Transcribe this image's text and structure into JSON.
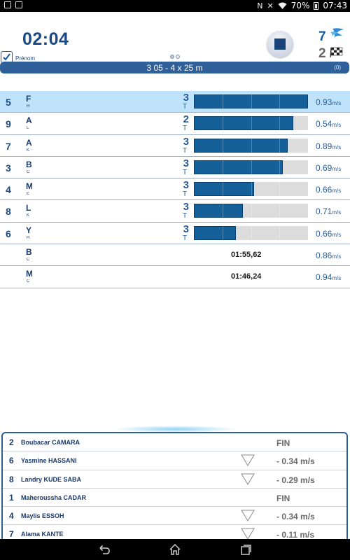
{
  "status_bar": {
    "battery": "70%",
    "time": "07:43",
    "icons": [
      "image-icon",
      "calendar-check-icon",
      "nfc-icon",
      "vibrate-icon",
      "wifi-icon",
      "battery-icon"
    ]
  },
  "header": {
    "timer": "02:04",
    "swimmers_in_water": "7",
    "swimmers_finished": "2",
    "prenom_label": "Prénom",
    "race_title": "3 05 - 4 x 25 m",
    "race_count": "(0)"
  },
  "rows": [
    {
      "lane": "5",
      "name": "F",
      "club": "H",
      "laps": "3",
      "t": "T",
      "progress": 1.0,
      "time": "",
      "speed": "0.93",
      "unit": "m/s",
      "highlight": true
    },
    {
      "lane": "9",
      "name": "A",
      "club": "L",
      "laps": "2",
      "t": "T",
      "progress": 0.87,
      "time": "",
      "speed": "0.54",
      "unit": "m/s",
      "highlight": false
    },
    {
      "lane": "7",
      "name": "A",
      "club": "K",
      "laps": "3",
      "t": "T",
      "progress": 0.82,
      "time": "",
      "speed": "0.89",
      "unit": "m/s",
      "highlight": false
    },
    {
      "lane": "3",
      "name": "B",
      "club": "C",
      "laps": "3",
      "t": "T",
      "progress": 0.78,
      "time": "",
      "speed": "0.69",
      "unit": "m/s",
      "highlight": false
    },
    {
      "lane": "4",
      "name": "M",
      "club": "E",
      "laps": "3",
      "t": "T",
      "progress": 0.53,
      "time": "",
      "speed": "0.66",
      "unit": "m/s",
      "highlight": false
    },
    {
      "lane": "8",
      "name": "L",
      "club": "K",
      "laps": "3",
      "t": "T",
      "progress": 0.43,
      "time": "",
      "speed": "0.71",
      "unit": "m/s",
      "highlight": false
    },
    {
      "lane": "6",
      "name": "Y",
      "club": "H",
      "laps": "3",
      "t": "T",
      "progress": 0.37,
      "time": "",
      "speed": "0.66",
      "unit": "m/s",
      "highlight": false
    },
    {
      "lane": "",
      "name": "B",
      "club": "C",
      "laps": "",
      "t": "",
      "progress": null,
      "time": "01:55,62",
      "speed": "0.86",
      "unit": "m/s",
      "highlight": false
    },
    {
      "lane": "",
      "name": "M",
      "club": "C",
      "laps": "",
      "t": "",
      "progress": null,
      "time": "01:46,24",
      "speed": "0.94",
      "unit": "m/s",
      "highlight": false
    }
  ],
  "ranking": [
    {
      "lane": "2",
      "name": "Boubacar CAMARA",
      "value": "FIN",
      "down": false
    },
    {
      "lane": "6",
      "name": "Yasmine HASSANI",
      "value": "- 0.34 m/s",
      "down": true
    },
    {
      "lane": "8",
      "name": "Landry KUDE SABA",
      "value": "- 0.29 m/s",
      "down": true
    },
    {
      "lane": "1",
      "name": "Maheroussha CADAR",
      "value": "FIN",
      "down": false
    },
    {
      "lane": "4",
      "name": "Maylis ESSOH",
      "value": "- 0.34 m/s",
      "down": true
    },
    {
      "lane": "7",
      "name": "Alama KANTE",
      "value": "- 0.11 m/s",
      "down": true
    }
  ],
  "colors": {
    "accent": "#1a4a86",
    "bar": "#16609a",
    "highlight": "#bfe3fb",
    "race_bar": "#2f6099"
  },
  "navigation": {
    "back": "back-icon",
    "home": "home-icon",
    "recents": "recent-apps-icon"
  }
}
